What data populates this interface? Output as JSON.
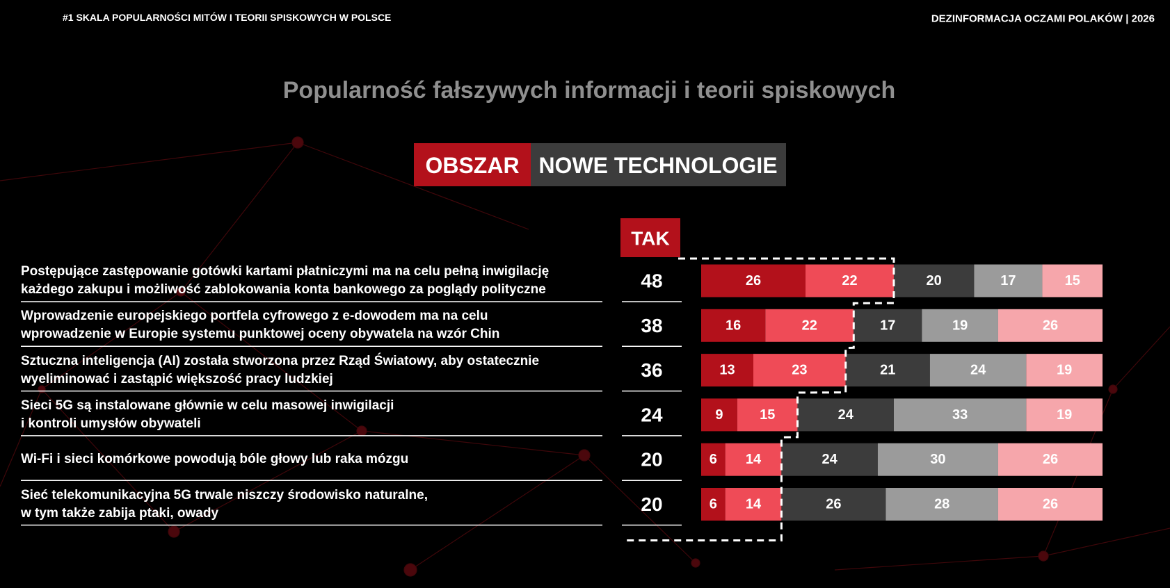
{
  "header_left": "#1 SKALA POPULARNOŚCI MITÓW I TEORII SPISKOWYCH W POLSCE",
  "header_right": "DEZINFORMACJA OCZAMI POLAKÓW | 2026",
  "chart_data": {
    "type": "stacked-bar-horizontal",
    "title": "Popularność fałszywych informacji i teorii spiskowych",
    "badge_label": "OBSZAR",
    "badge_value": "NOWE TECHNOLOGIE",
    "categories": [
      "Postępujące zastępowanie gotówki kartami płatniczymi ma na celu pełną inwigilację\nkażdego zakupu i możliwość zablokowania konta bankowego za poglądy polityczne",
      "Wprowadzenie europejskiego portfela cyfrowego z e-dowodem ma na celu\nwprowadzenie w Europie systemu punktowej oceny obywatela na wzór Chin",
      "Sztuczna inteligencja (AI) została stworzona przez Rząd Światowy, aby ostatecznie\nwyeliminować i zastąpić większość pracy ludzkiej",
      "Sieci 5G są instalowane głównie w celu masowej inwigilacji\ni kontroli umysłów obywateli",
      "Wi-Fi i sieci komórkowe powodują bóle głowy lub raka mózgu",
      "Sieć telekomunikacyjna 5G trwale niszczy środowisko naturalne,\nw tym także zabija ptaki, owady"
    ],
    "tak": {
      "label": "TAK",
      "values": [
        48,
        38,
        36,
        24,
        20,
        20
      ]
    },
    "xlim": [
      0,
      100
    ],
    "series": [
      {
        "color": "#b3111b",
        "values": [
          26,
          16,
          13,
          9,
          6,
          6
        ]
      },
      {
        "color": "#ef4b57",
        "values": [
          22,
          22,
          23,
          15,
          14,
          14
        ]
      },
      {
        "color": "#3c3c3c",
        "values": [
          20,
          17,
          21,
          24,
          24,
          26
        ]
      },
      {
        "color": "#9b9b9b",
        "values": [
          17,
          19,
          24,
          33,
          30,
          28
        ]
      },
      {
        "color": "#f6a6ab",
        "values": [
          15,
          26,
          19,
          19,
          26,
          26
        ]
      }
    ]
  }
}
